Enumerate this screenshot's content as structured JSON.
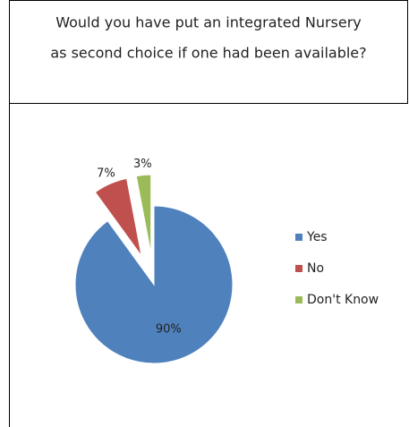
{
  "chart_data": {
    "type": "pie",
    "title": [
      "Would you have put an integrated Nursery",
      "as second choice if one had been available?"
    ],
    "categories": [
      "Yes",
      "No",
      "Don't Know"
    ],
    "values": [
      90,
      7,
      3
    ],
    "value_labels": [
      "90%",
      "7%",
      "3%"
    ],
    "colors": [
      "#4f81bd",
      "#c0504d",
      "#9bbb59"
    ],
    "legend": "right"
  }
}
